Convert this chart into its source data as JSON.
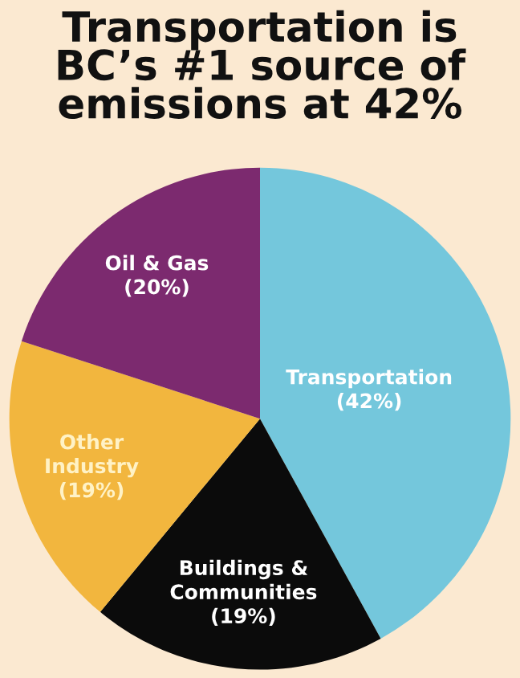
{
  "chart_data": {
    "type": "pie",
    "title": "Transportation is BC’s #1 source of emissions at 42%",
    "categories": [
      "Transportation",
      "Buildings & Communities",
      "Other Industry",
      "Oil & Gas"
    ],
    "values": [
      42,
      19,
      19,
      20
    ],
    "value_labels": [
      "(42%)",
      "(19%)",
      "(19%)",
      "(20%)"
    ],
    "colors": [
      "#74c7dc",
      "#0b0b0b",
      "#f2b63e",
      "#7c2a6f"
    ],
    "legend": false
  }
}
